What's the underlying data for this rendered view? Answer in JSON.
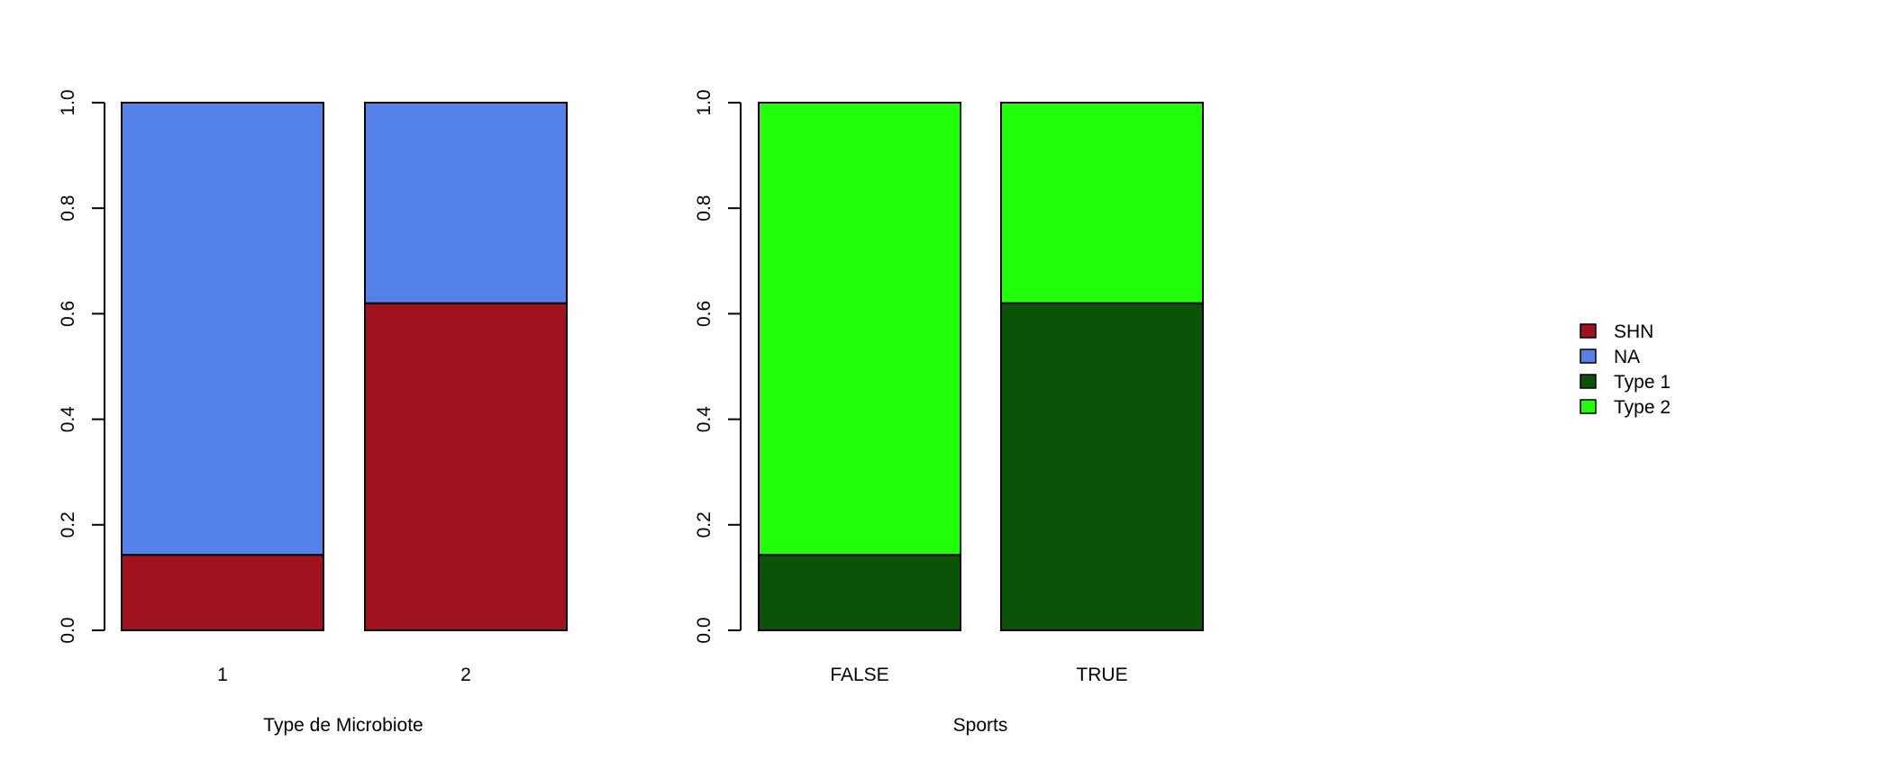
{
  "colors": {
    "SHN": "#A0121D",
    "NA": "#5582E8",
    "Type 1": "#0B5306",
    "Type 2": "#22FF0B"
  },
  "legend": {
    "placement": "right",
    "items": [
      {
        "label": "SHN",
        "color": "#A0121D"
      },
      {
        "label": "NA",
        "color": "#5582E8"
      },
      {
        "label": "Type 1",
        "color": "#0B5306"
      },
      {
        "label": "Type 2",
        "color": "#22FF0B"
      }
    ]
  },
  "chart_data": [
    {
      "type": "bar",
      "stacked": true,
      "categories": [
        "1",
        "2"
      ],
      "series": [
        {
          "name": "SHN",
          "values": [
            0.143,
            0.62
          ]
        },
        {
          "name": "NA",
          "values": [
            0.857,
            0.38
          ]
        }
      ],
      "xlabel": "Type de Microbiote",
      "ylabel": "",
      "ylim": [
        0,
        1
      ],
      "yticks": [
        "0.0",
        "0.2",
        "0.4",
        "0.6",
        "0.8",
        "1.0"
      ],
      "grid": false
    },
    {
      "type": "bar",
      "stacked": true,
      "categories": [
        "FALSE",
        "TRUE"
      ],
      "series": [
        {
          "name": "Type 1",
          "values": [
            0.143,
            0.62
          ]
        },
        {
          "name": "Type 2",
          "values": [
            0.857,
            0.38
          ]
        }
      ],
      "xlabel": "Sports",
      "ylabel": "",
      "ylim": [
        0,
        1
      ],
      "yticks": [
        "0.0",
        "0.2",
        "0.4",
        "0.6",
        "0.8",
        "1.0"
      ],
      "grid": false
    }
  ]
}
